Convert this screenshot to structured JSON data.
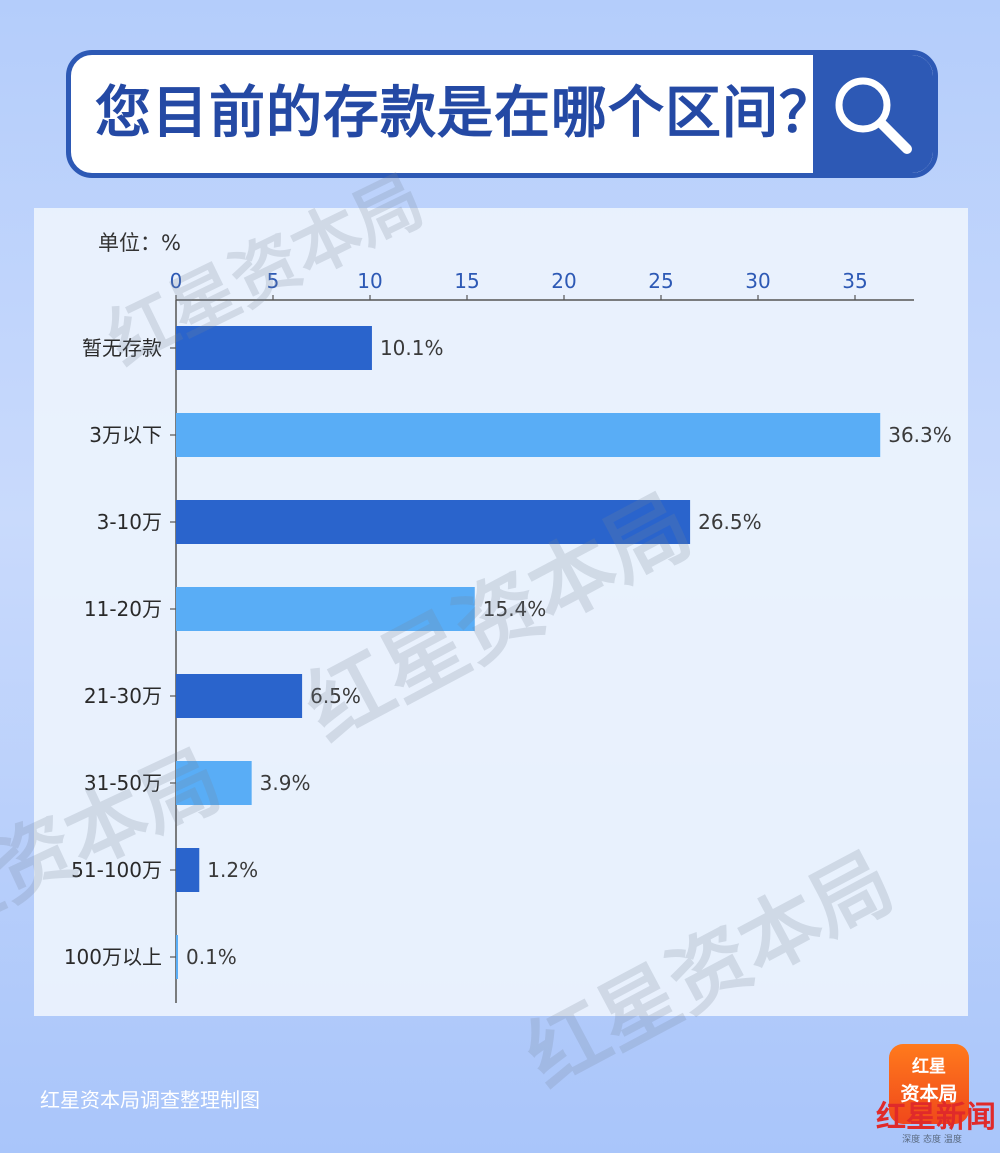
{
  "title": "您目前的存款是在哪个区间？",
  "chart_data": {
    "type": "bar",
    "orientation": "horizontal",
    "unit_label": "单位：%",
    "xlim": [
      0,
      35
    ],
    "x_ticks": [
      0,
      5,
      10,
      15,
      20,
      25,
      30,
      35
    ],
    "grid": false,
    "categories": [
      "暂无存款",
      "3万以下",
      "3-10万",
      "11-20万",
      "21-30万",
      "31-50万",
      "51-100万",
      "100万以上"
    ],
    "values": [
      10.1,
      36.3,
      26.5,
      15.4,
      6.5,
      3.9,
      1.2,
      0.1
    ],
    "value_labels": [
      "10.1%",
      "36.3%",
      "26.5%",
      "15.4%",
      "6.5%",
      "3.9%",
      "1.2%",
      "0.1%"
    ],
    "colors": [
      "#2a64cc",
      "#59adf6",
      "#2a64cc",
      "#59adf6",
      "#2a64cc",
      "#59adf6",
      "#2a64cc",
      "#59adf6"
    ]
  },
  "footer": {
    "credit": "红星资本局调查整理制图"
  },
  "logo": {
    "top": "红星",
    "main": "资本局",
    "brand": "红星新闻",
    "slogan": "深度 态度 温度"
  },
  "watermark": "红星资本局"
}
